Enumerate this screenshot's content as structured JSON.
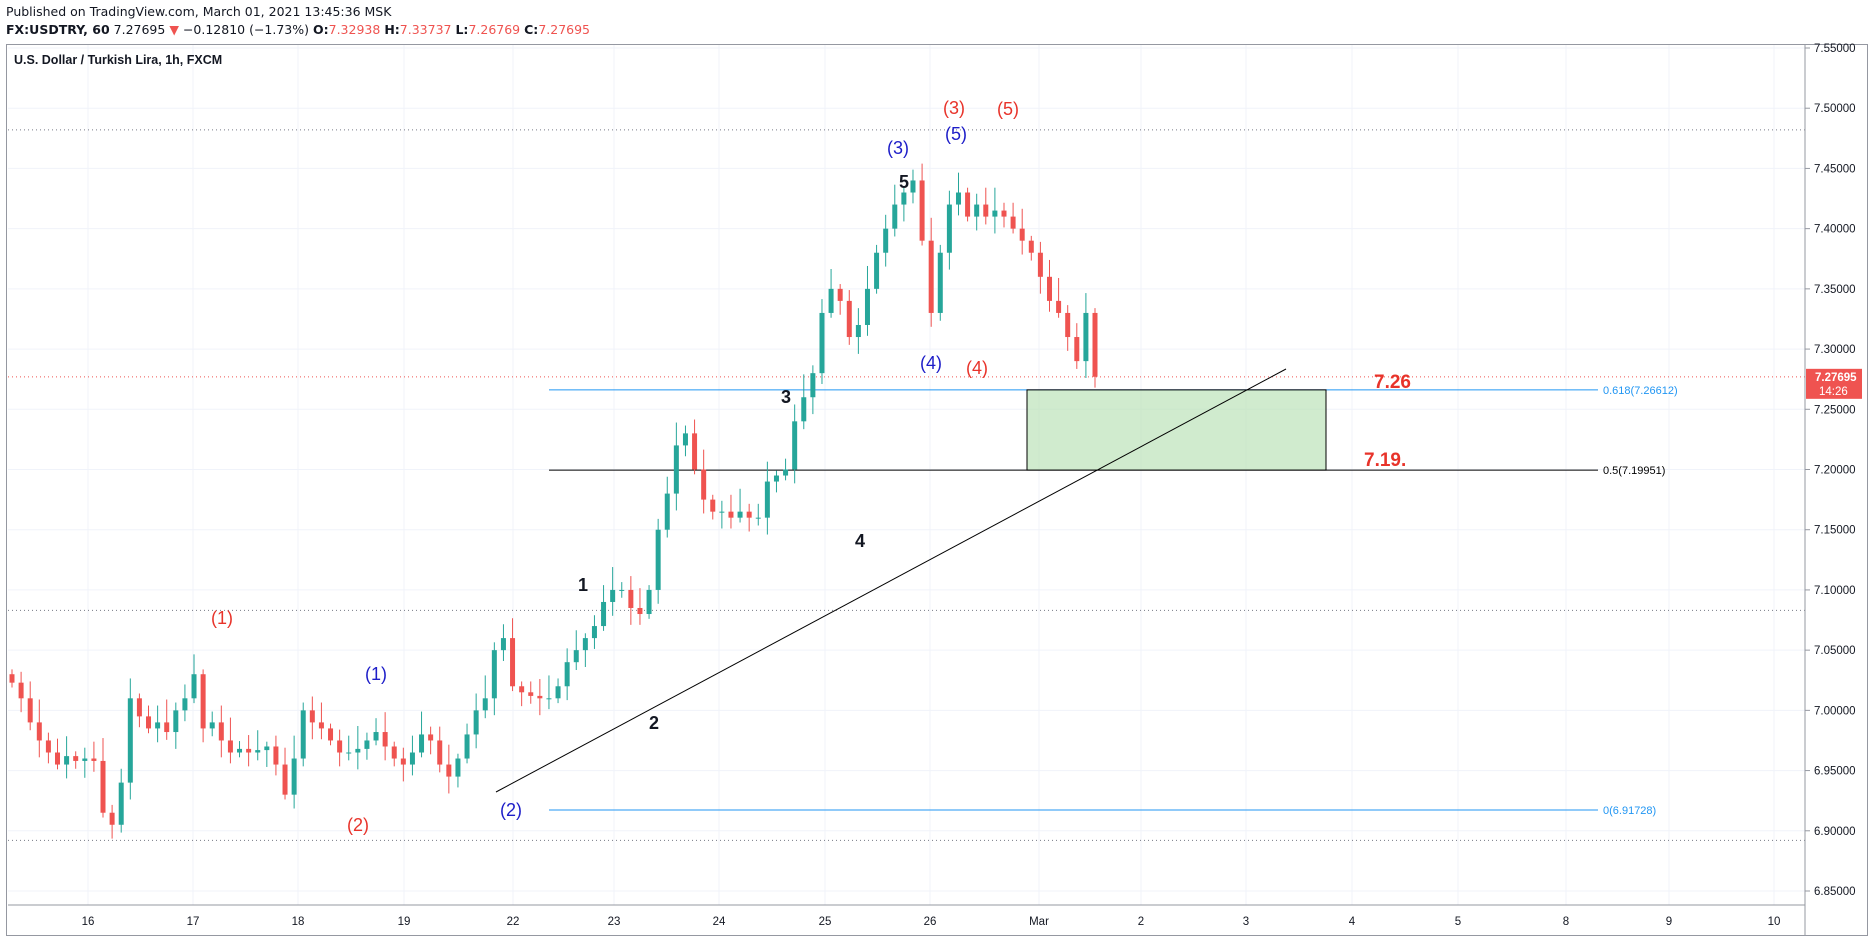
{
  "header": {
    "published": "Published on TradingView.com, March 01, 2021 13:45:36 MSK",
    "symbol": "FX:USDTRY, 60",
    "last": "7.27695",
    "arrow": "▼",
    "change": "−0.12810 (−1.73%)",
    "o_label": "O:",
    "o_value": "7.32938",
    "h_label": "H:",
    "h_value": "7.33737",
    "l_label": "L:",
    "l_value": "7.26769",
    "c_label": "C:",
    "c_value": "7.27695"
  },
  "chart_data": {
    "type": "candlestick",
    "title": "U.S. Dollar / Turkish Lira, 1h, FXCM",
    "ylim": [
      6.82,
      7.55
    ],
    "y_ticks": [
      "7.55000",
      "7.50000",
      "7.45000",
      "7.40000",
      "7.35000",
      "7.30000",
      "7.25000",
      "7.20000",
      "7.15000",
      "7.10000",
      "7.05000",
      "7.00000",
      "6.95000",
      "6.90000",
      "6.85000"
    ],
    "x_ticks": [
      "16",
      "17",
      "18",
      "19",
      "22",
      "23",
      "24",
      "25",
      "26",
      "Mar",
      "2",
      "3",
      "4",
      "5",
      "8",
      "9",
      "10"
    ],
    "price_close": [
      7.023,
      7.01,
      6.99,
      6.975,
      6.965,
      6.955,
      6.962,
      6.958,
      6.96,
      6.958,
      6.915,
      6.905,
      6.94,
      7.01,
      6.995,
      6.985,
      6.99,
      6.982,
      7.0,
      7.01,
      7.03,
      6.985,
      6.99,
      6.975,
      6.965,
      6.968,
      6.965,
      6.967,
      6.97,
      6.955,
      6.93,
      6.96,
      7.0,
      6.99,
      6.985,
      6.975,
      6.965,
      6.965,
      6.968,
      6.975,
      6.982,
      6.97,
      6.96,
      6.955,
      6.965,
      6.98,
      6.975,
      6.955,
      6.945,
      6.96,
      6.98,
      7.0,
      7.01,
      7.05,
      7.06,
      7.02,
      7.015,
      7.012,
      7.01,
      7.01,
      7.02,
      7.04,
      7.05,
      7.06,
      7.07,
      7.09,
      7.1,
      7.1,
      7.085,
      7.08,
      7.1,
      7.15,
      7.18,
      7.22,
      7.23,
      7.2,
      7.175,
      7.165,
      7.165,
      7.16,
      7.165,
      7.16,
      7.16,
      7.19,
      7.195,
      7.2,
      7.24,
      7.26,
      7.28,
      7.33,
      7.35,
      7.34,
      7.31,
      7.32,
      7.35,
      7.38,
      7.4,
      7.42,
      7.43,
      7.44,
      7.39,
      7.33,
      7.38,
      7.42,
      7.43,
      7.41,
      7.42,
      7.41,
      7.415,
      7.41,
      7.4,
      7.39,
      7.38,
      7.36,
      7.34,
      7.33,
      7.31,
      7.29,
      7.33,
      7.277
    ],
    "current_price_label": "7.27695",
    "countdown": "14:26",
    "annotations": [
      "(1)",
      "(2)",
      "(3)",
      "(4)",
      "(5)",
      "(1)",
      "(2)",
      "(3)",
      "(4)",
      "(5)",
      "1",
      "2",
      "3",
      "4",
      "5"
    ],
    "fib_levels": [
      {
        "label": "0.618(7.26612)",
        "value": 7.26612
      },
      {
        "label": "0.5(7.19951)",
        "value": 7.19951
      },
      {
        "label": "0(6.91728)",
        "value": 6.91728
      }
    ],
    "target_labels": [
      "7.26",
      "7.19."
    ],
    "horizontal_lines": [
      7.482,
      7.083,
      6.892
    ],
    "trendline": [
      [
        6.93,
        0
      ],
      [
        7.28,
        1
      ]
    ],
    "colors": {
      "up": "#26a69a",
      "down": "#ef5350",
      "fib": "#2196f3",
      "red_wave": "#e8332a",
      "blue_wave": "#1d1dc8",
      "zone": "#b7e1b3"
    }
  }
}
